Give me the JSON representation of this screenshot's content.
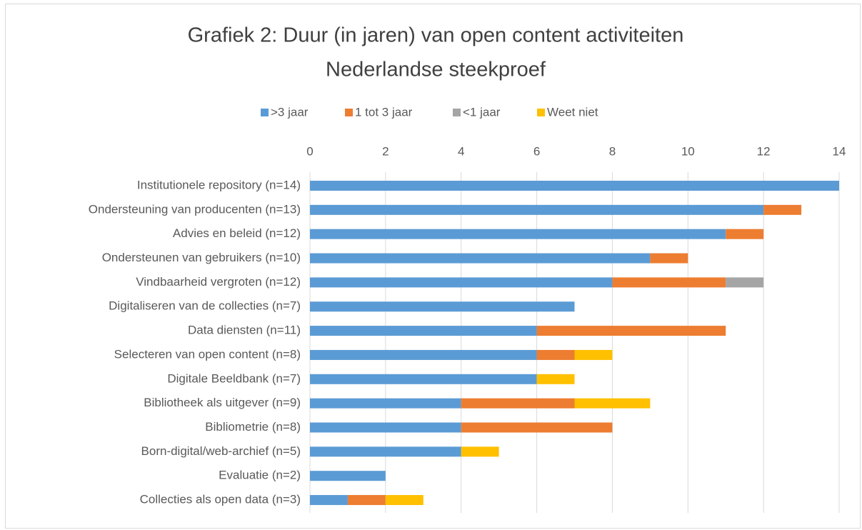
{
  "chart_data": {
    "type": "stacked-bar-horizontal",
    "title": [
      "Grafiek 2: Duur (in jaren) van open content activiteiten",
      "Nederlandse steekproef"
    ],
    "categories": [
      "Institutionele repository (n=14)",
      "Ondersteuning van producenten (n=13)",
      "Advies en beleid (n=12)",
      "Ondersteunen van gebruikers (n=10)",
      "Vindbaarheid vergroten (n=12)",
      "Digitaliseren van de collecties (n=7)",
      "Data diensten (n=11)",
      "Selecteren van open content (n=8)",
      "Digitale Beeldbank (n=7)",
      "Bibliotheek als uitgever (n=9)",
      "Bibliometrie (n=8)",
      "Born-digital/web-archief (n=5)",
      "Evaluatie (n=2)",
      "Collecties als open data (n=3)"
    ],
    "series": [
      {
        "name": ">3 jaar",
        "color": "#5b9bd5",
        "values": [
          14,
          12,
          11,
          9,
          8,
          7,
          6,
          6,
          6,
          4,
          4,
          4,
          2,
          1
        ]
      },
      {
        "name": "1 tot 3 jaar",
        "color": "#ed7d31",
        "values": [
          null,
          1,
          1,
          1,
          3,
          null,
          5,
          1,
          null,
          3,
          4,
          null,
          null,
          1
        ]
      },
      {
        "name": "<1 jaar",
        "color": "#a5a5a5",
        "values": [
          null,
          null,
          null,
          null,
          1,
          null,
          null,
          null,
          null,
          null,
          null,
          null,
          null,
          null
        ]
      },
      {
        "name": "Weet niet",
        "color": "#ffc000",
        "values": [
          null,
          null,
          null,
          null,
          null,
          null,
          null,
          1,
          1,
          2,
          null,
          1,
          null,
          1
        ]
      }
    ],
    "xlim": [
      0,
      14
    ],
    "xticks": [
      0,
      2,
      4,
      6,
      8,
      10,
      12,
      14
    ],
    "grid": true,
    "legend": "top"
  }
}
